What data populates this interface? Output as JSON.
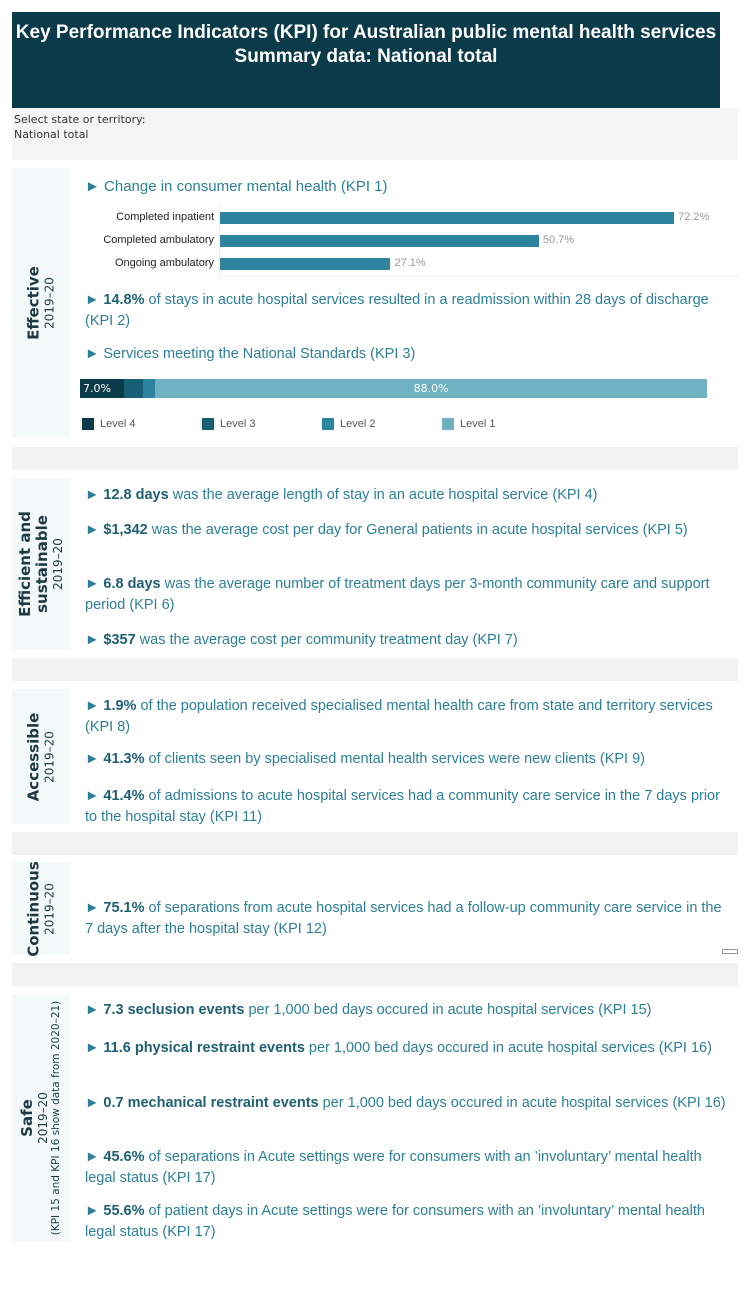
{
  "header": {
    "line1": "Key Performance Indicators (KPI) for Australian public mental health services",
    "line2": "Summary data: National total"
  },
  "filter": {
    "label": "Select state or territory:",
    "value": "National total"
  },
  "colors": {
    "header": "#0b3a4a",
    "level4": "#0b3a4a",
    "level3": "#175f75",
    "level2": "#2e849e",
    "level1": "#6fb1c2"
  },
  "effective": {
    "title": "Effective",
    "year": "2019–20",
    "kpi1": {
      "title": "► Change in consumer mental health (KPI 1)",
      "bars": [
        {
          "label": "Completed inpatient",
          "value": 72.2,
          "text": "72.2%"
        },
        {
          "label": "Completed ambulatory",
          "value": 50.7,
          "text": "50.7%"
        },
        {
          "label": "Ongoing ambulatory",
          "value": 27.1,
          "text": "27.1%"
        }
      ]
    },
    "kpi2": {
      "bold": "14.8%",
      "text": " of stays in acute hospital services resulted in a readmission within 28 days of discharge (KPI 2)"
    },
    "kpi3": {
      "title": "► Services meeting the National Standards (KPI 3)",
      "segments": [
        {
          "name": "Level 4",
          "value": 7.0,
          "text": "7.0%"
        },
        {
          "name": "Level 3",
          "value": 3.0
        },
        {
          "name": "Level 2",
          "value": 2.0
        },
        {
          "name": "Level 1",
          "value": 88.0,
          "text": "88.0%"
        }
      ]
    }
  },
  "efficient": {
    "title1": "Efficient and",
    "title2": "sustainable",
    "year": "2019–20",
    "items": [
      {
        "bold": "12.8 days",
        "text": " was the average length of stay in an acute hospital service (KPI 4)"
      },
      {
        "bold": "$1,342",
        "text": " was the average cost per day for General patients in acute hospital services (KPI 5)"
      },
      {
        "bold": "6.8 days",
        "text": " was the average number of treatment days per 3-month community care and support period (KPI 6)"
      },
      {
        "bold": "$357",
        "text": " was the average cost per community treatment day (KPI 7)"
      }
    ]
  },
  "accessible": {
    "title": "Accessible",
    "year": "2019–20",
    "items": [
      {
        "bold": "1.9%",
        "text": " of the population received specialised mental health care from state and territory services (KPI 8)"
      },
      {
        "bold": "41.3%",
        "text": " of clients seen by specialised mental health services were new clients (KPI 9)"
      },
      {
        "bold": "41.4%",
        "text": " of admissions to acute hospital services had a community care service in the 7 days prior to the hospital stay (KPI 11)"
      }
    ]
  },
  "continuous": {
    "title": "Continuous",
    "year": "2019–20",
    "items": [
      {
        "bold": "75.1%",
        "text": " of separations from acute hospital services had a follow-up community care service in the 7 days after the hospital stay (KPI 12)"
      }
    ]
  },
  "safe": {
    "title": "Safe",
    "year": "2019–20",
    "note": "(KPI 15 and KPI 16 show data from 2020–21)",
    "items": [
      {
        "bold": "7.3 seclusion events",
        "text": " per 1,000 bed days occured in acute hospital services (KPI 15)"
      },
      {
        "bold": "11.6 physical restraint events",
        "text": " per 1,000 bed days occured in acute hospital services (KPI 16)"
      },
      {
        "bold": "0.7 mechanical restraint events",
        "text": " per 1,000 bed days occured in acute hospital services (KPI 16)"
      },
      {
        "bold": "45.6%",
        "text": " of separations in Acute settings were for consumers with an ’involuntary’ mental health legal status (KPI 17)"
      },
      {
        "bold": "55.6%",
        "text": " of patient days in Acute settings were for consumers with an ’involuntary’ mental health legal status (KPI 17)"
      }
    ]
  }
}
